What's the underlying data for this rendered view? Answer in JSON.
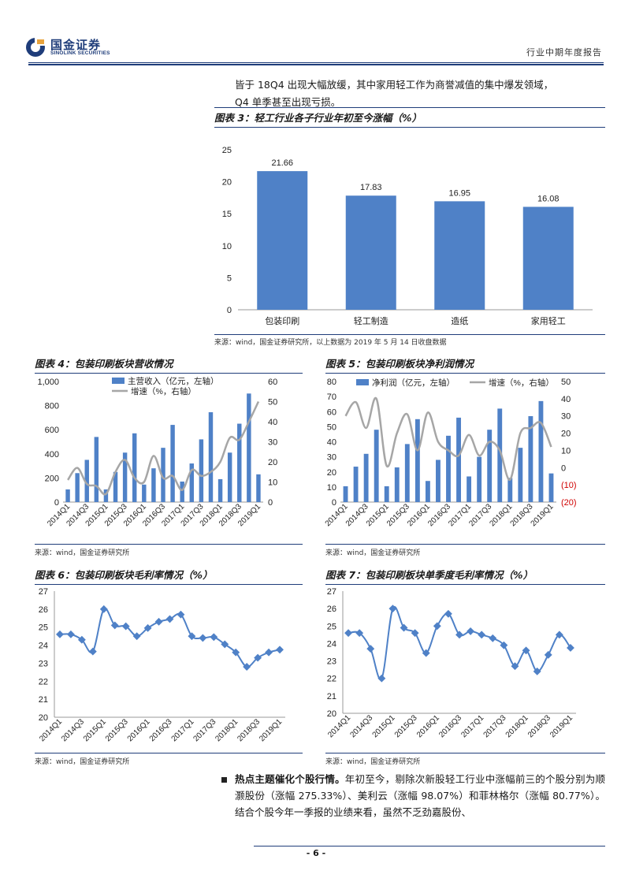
{
  "header": {
    "brand_cn": "国金证券",
    "brand_en": "SINOLINK SECURITIES",
    "doc_type": "行业中期年度报告"
  },
  "intro_lines": [
    "皆于 18Q4 出现大幅放缓，其中家用轻工作为商誉减值的集中爆发领域，",
    "Q4 单季甚至出现亏损。"
  ],
  "figures": {
    "fig3": {
      "title": "图表 3：轻工行业各子行业年初至今涨幅（%）",
      "source": "来源：wind，国金证券研究所，以上数据为 2019 年 5 月 14 日收盘数据"
    },
    "fig4": {
      "title": "图表 4：包装印刷板块营收情况",
      "source": "来源：wind，国金证券研究所"
    },
    "fig5": {
      "title": "图表 5：包装印刷板块净利润情况",
      "source": "来源：wind，国金证券研究所"
    },
    "fig6": {
      "title": "图表 6：包装印刷板块毛利率情况（%）",
      "source": "来源：wind，国金证券研究所"
    },
    "fig7": {
      "title": "图表 7：包装印刷板块单季度毛利率情况（%）",
      "source": "来源：wind，国金证券研究所"
    }
  },
  "chart_data": [
    {
      "id": "fig3",
      "type": "bar",
      "categories": [
        "包装印刷",
        "轻工制造",
        "造纸",
        "家用轻工"
      ],
      "values": [
        21.66,
        17.83,
        16.95,
        16.08
      ],
      "data_labels": [
        "21.66",
        "17.83",
        "16.95",
        "16.08"
      ],
      "ylim": [
        0,
        25
      ],
      "yticks": [
        "0",
        "5",
        "10",
        "15",
        "20",
        "25"
      ],
      "bar_color": "#4f81c7"
    },
    {
      "id": "fig4",
      "type": "bar",
      "x": [
        "2014Q1",
        "2014Q2",
        "2014Q3",
        "2014Q4",
        "2015Q1",
        "2015Q2",
        "2015Q3",
        "2015Q4",
        "2016Q1",
        "2016Q2",
        "2016Q3",
        "2016Q4",
        "2017Q1",
        "2017Q2",
        "2017Q3",
        "2017Q4",
        "2018Q1",
        "2018Q2",
        "2018Q3",
        "2018Q4",
        "2019Q1"
      ],
      "xtick_labels": [
        "2014Q1",
        "2014Q3",
        "2015Q1",
        "2015Q3",
        "2016Q1",
        "2016Q3",
        "2017Q1",
        "2017Q3",
        "2018Q1",
        "2018Q3",
        "2019Q1"
      ],
      "series": [
        {
          "name": "主营收入（亿元，左轴）",
          "kind": "bar",
          "axis": "left",
          "color": "#4f81c7",
          "values": [
            105,
            240,
            350,
            540,
            105,
            250,
            410,
            570,
            145,
            280,
            450,
            640,
            170,
            320,
            520,
            745,
            190,
            410,
            650,
            900,
            230
          ]
        },
        {
          "name": "增速（%，右轴）",
          "kind": "line",
          "axis": "right",
          "color": "#a6a6a6",
          "values": [
            11,
            17,
            9,
            8,
            4,
            15,
            21,
            12,
            10,
            23,
            12,
            13,
            6,
            16,
            13,
            15,
            20,
            32,
            31,
            40,
            50
          ]
        }
      ],
      "left_ylim": [
        0,
        1000
      ],
      "left_yticks": [
        "0",
        "200",
        "400",
        "600",
        "800",
        "1,000"
      ],
      "right_ylim": [
        0,
        60
      ],
      "right_yticks": [
        "0",
        "10",
        "20",
        "30",
        "40",
        "50",
        "60"
      ]
    },
    {
      "id": "fig5",
      "type": "bar",
      "x": [
        "2014Q1",
        "2014Q2",
        "2014Q3",
        "2014Q4",
        "2015Q1",
        "2015Q2",
        "2015Q3",
        "2015Q4",
        "2016Q1",
        "2016Q2",
        "2016Q3",
        "2016Q4",
        "2017Q1",
        "2017Q2",
        "2017Q3",
        "2017Q4",
        "2018Q1",
        "2018Q2",
        "2018Q3",
        "2018Q4",
        "2019Q1"
      ],
      "xtick_labels": [
        "2014Q1",
        "2014Q3",
        "2015Q1",
        "2015Q3",
        "2016Q1",
        "2016Q3",
        "2017Q1",
        "2017Q3",
        "2018Q1",
        "2018Q3",
        "2019Q1"
      ],
      "series": [
        {
          "name": "净利润（亿元，左轴）",
          "kind": "bar",
          "axis": "left",
          "color": "#4f81c7",
          "values": [
            10.5,
            23.5,
            32,
            48,
            10.5,
            23,
            38.5,
            55,
            14,
            28,
            44,
            56,
            17,
            30,
            48,
            62,
            16,
            36,
            57,
            67,
            19
          ]
        },
        {
          "name": "增速（%，右轴）",
          "kind": "line",
          "axis": "right",
          "color": "#a6a6a6",
          "values": [
            30,
            38,
            23,
            40,
            1,
            20,
            31,
            10,
            32,
            15,
            10,
            7,
            19,
            7,
            15,
            10,
            -7,
            20,
            23,
            26,
            12
          ]
        }
      ],
      "left_ylim": [
        0,
        80
      ],
      "left_yticks": [
        "0",
        "10",
        "20",
        "30",
        "40",
        "50",
        "60",
        "70",
        "80"
      ],
      "right_ylim": [
        -20,
        50
      ],
      "right_yticks": [
        "(20)",
        "(10)",
        "0",
        "10",
        "20",
        "30",
        "40",
        "50"
      ]
    },
    {
      "id": "fig6",
      "type": "line",
      "x": [
        "2014Q1",
        "2014Q2",
        "2014Q3",
        "2014Q4",
        "2015Q1",
        "2015Q2",
        "2015Q3",
        "2015Q4",
        "2016Q1",
        "2016Q2",
        "2016Q3",
        "2016Q4",
        "2017Q1",
        "2017Q2",
        "2017Q3",
        "2017Q4",
        "2018Q1",
        "2018Q2",
        "2018Q3",
        "2018Q4",
        "2019Q1"
      ],
      "xtick_labels": [
        "2014Q1",
        "2014Q3",
        "2015Q1",
        "2015Q3",
        "2016Q1",
        "2016Q3",
        "2017Q1",
        "2017Q3",
        "2018Q1",
        "2018Q3",
        "2019Q1"
      ],
      "series": [
        {
          "color": "#4f81c7",
          "values": [
            24.6,
            24.6,
            24.3,
            23.65,
            26.0,
            25.1,
            25.05,
            24.5,
            24.95,
            25.3,
            25.45,
            25.7,
            24.5,
            24.4,
            24.45,
            24.05,
            23.6,
            22.8,
            23.3,
            23.6,
            23.75
          ]
        }
      ],
      "ylim": [
        20,
        27
      ],
      "yticks": [
        "20",
        "21",
        "22",
        "23",
        "24",
        "25",
        "26",
        "27"
      ]
    },
    {
      "id": "fig7",
      "type": "line",
      "x": [
        "2014Q1",
        "2014Q2",
        "2014Q3",
        "2014Q4",
        "2015Q1",
        "2015Q2",
        "2015Q3",
        "2015Q4",
        "2016Q1",
        "2016Q2",
        "2016Q3",
        "2016Q4",
        "2017Q1",
        "2017Q2",
        "2017Q3",
        "2017Q4",
        "2018Q1",
        "2018Q2",
        "2018Q3",
        "2018Q4",
        "2019Q1"
      ],
      "xtick_labels": [
        "2014Q1",
        "2014Q3",
        "2015Q1",
        "2015Q3",
        "2016Q1",
        "2016Q3",
        "2017Q1",
        "2017Q3",
        "2018Q1",
        "2018Q3",
        "2019Q1"
      ],
      "series": [
        {
          "color": "#4f81c7",
          "values": [
            24.6,
            24.6,
            23.7,
            22.0,
            26.0,
            24.9,
            24.6,
            23.45,
            25.0,
            25.7,
            24.5,
            24.7,
            24.5,
            24.3,
            23.9,
            22.7,
            23.6,
            22.4,
            23.35,
            24.5,
            23.75
          ]
        }
      ],
      "ylim": [
        20,
        27
      ],
      "yticks": [
        "20",
        "21",
        "22",
        "23",
        "24",
        "25",
        "26",
        "27"
      ]
    }
  ],
  "hot_topic": {
    "lead": "热点主题催化个股行情。",
    "text": "年初至今，剔除次新股轻工行业中涨幅前三的个股分别为顺灏股份（涨幅 275.33%）、美利云（涨幅 98.07%）和菲林格尔（涨幅 80.77%）。结合个股今年一季报的业绩来看，虽然不乏劲嘉股份、"
  },
  "footer": {
    "page": "- 6 -"
  }
}
